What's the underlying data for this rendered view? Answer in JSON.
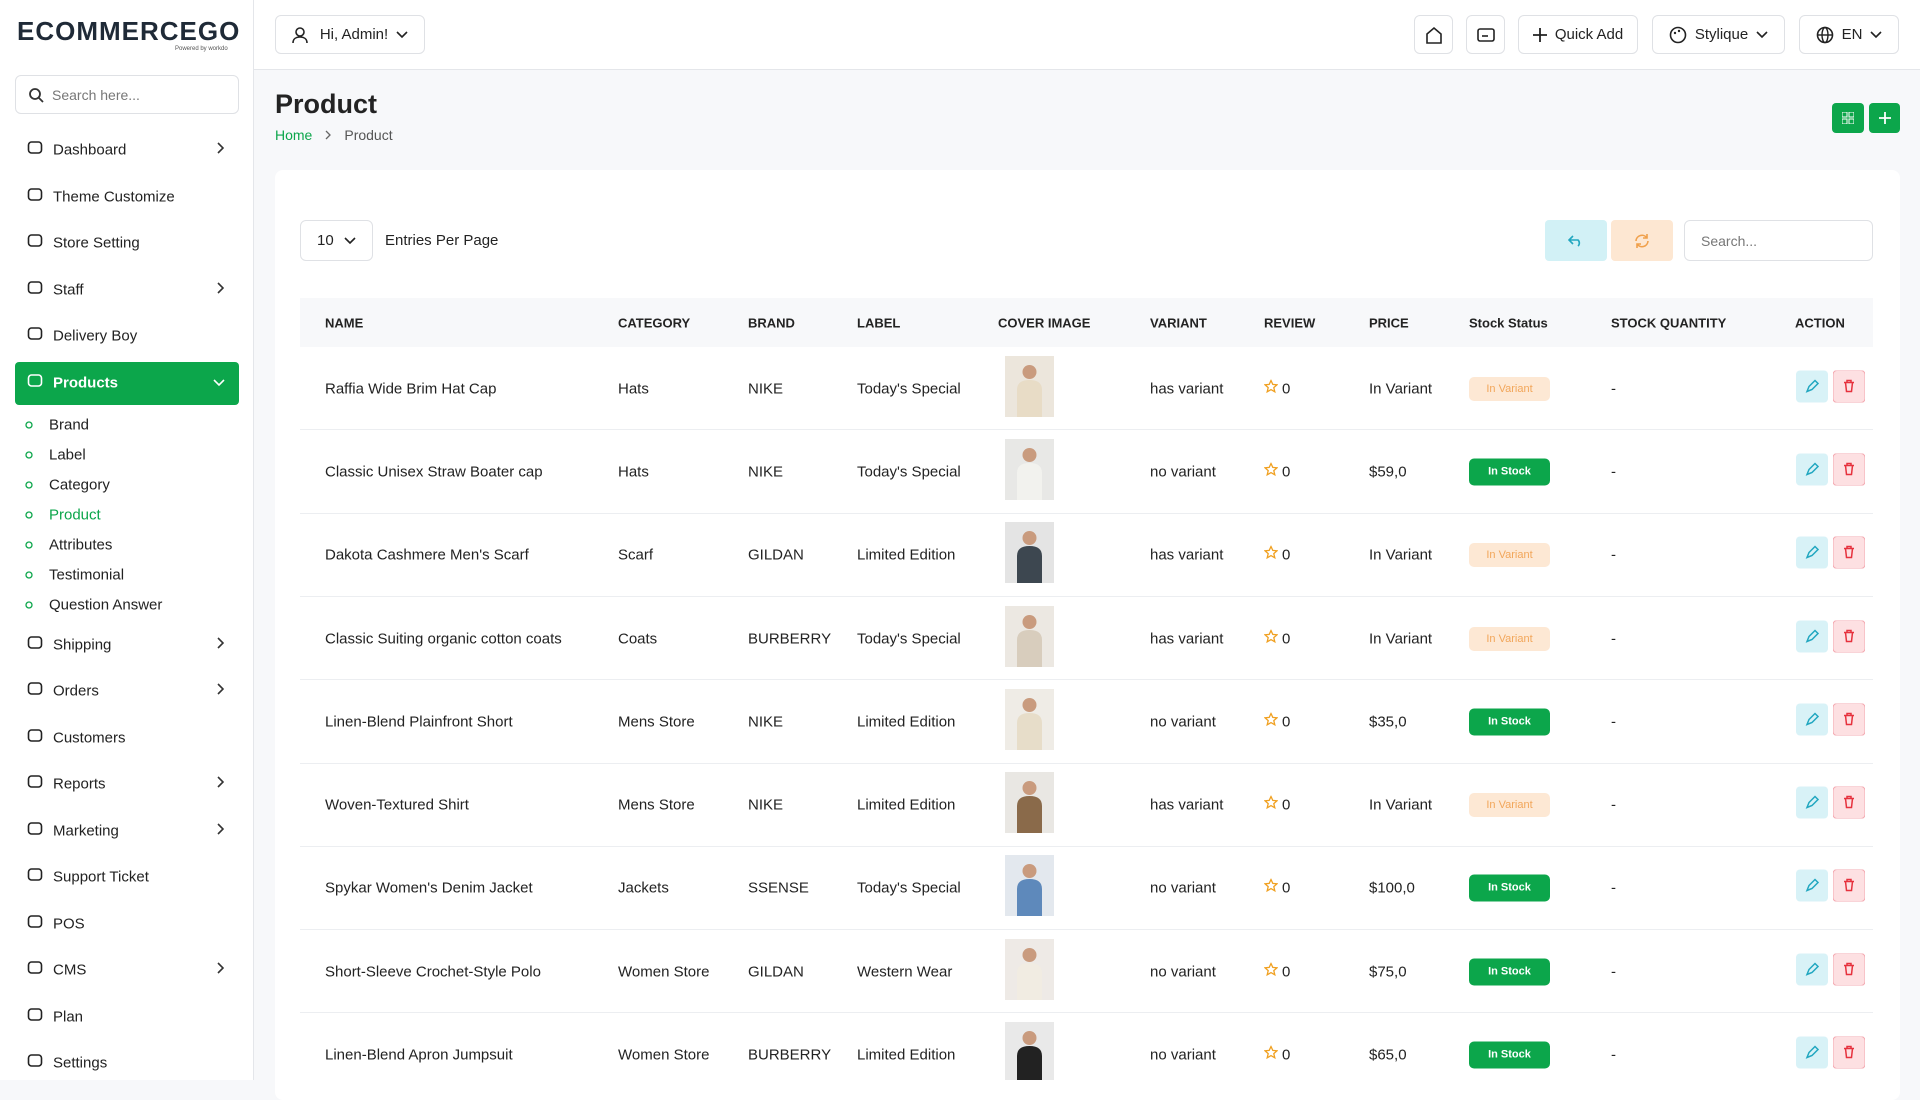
{
  "sidebar": {
    "logo": "ECOMMERCEGO",
    "logo_sub": "Powered by workdo",
    "search_placeholder": "Search here...",
    "menu": [
      {
        "label": "Dashboard",
        "arrow": true
      },
      {
        "label": "Theme Customize",
        "arrow": false
      },
      {
        "label": "Store Setting",
        "arrow": false
      },
      {
        "label": "Staff",
        "arrow": true
      },
      {
        "label": "Delivery Boy",
        "arrow": false
      },
      {
        "label": "Products",
        "arrow": true,
        "open": true,
        "active_child": 3,
        "children": [
          "Brand",
          "Label",
          "Category",
          "Product",
          "Attributes",
          "Testimonial",
          "Question Answer"
        ]
      },
      {
        "label": "Shipping",
        "arrow": true
      },
      {
        "label": "Orders",
        "arrow": true
      },
      {
        "label": "Customers",
        "arrow": false
      },
      {
        "label": "Reports",
        "arrow": true
      },
      {
        "label": "Marketing",
        "arrow": true
      },
      {
        "label": "Support Ticket",
        "arrow": false
      },
      {
        "label": "POS",
        "arrow": false
      },
      {
        "label": "CMS",
        "arrow": true
      },
      {
        "label": "Plan",
        "arrow": false
      },
      {
        "label": "Settings",
        "arrow": false
      }
    ]
  },
  "header": {
    "greeting": "Hi, Admin!",
    "quick_add": "Quick Add",
    "theme": "Stylique",
    "language": "EN"
  },
  "page": {
    "title": "Product",
    "breadcrumb": [
      "Home",
      "Product"
    ]
  },
  "table": {
    "entries": "10",
    "entries_label": "Entries Per Page",
    "search_placeholder": "Search...",
    "columns": [
      "NAME",
      "CATEGORY",
      "BRAND",
      "LABEL",
      "COVER IMAGE",
      "VARIANT",
      "REVIEW",
      "PRICE",
      "Stock Status",
      "STOCK QUANTITY",
      "ACTION"
    ],
    "rows": [
      {
        "name": "Raffia Wide Brim Hat Cap",
        "category": "Hats",
        "brand": "NIKE",
        "label": "Today's Special",
        "variant": "has variant",
        "review": 0,
        "price": "In Variant",
        "status": "In Variant",
        "in_stock": false,
        "stock_quantity": "-"
      },
      {
        "name": "Classic Unisex Straw Boater cap",
        "category": "Hats",
        "brand": "NIKE",
        "label": "Today's Special",
        "variant": "no variant",
        "review": 0,
        "price": "$59,0",
        "status": "In Stock",
        "in_stock": true,
        "stock_quantity": "-"
      },
      {
        "name": "Dakota Cashmere Men's Scarf",
        "category": "Scarf",
        "brand": "GILDAN",
        "label": "Limited Edition",
        "variant": "has variant",
        "review": 0,
        "price": "In Variant",
        "status": "In Variant",
        "in_stock": false,
        "stock_quantity": "-"
      },
      {
        "name": "Classic Suiting organic cotton coats",
        "category": "Coats",
        "brand": "BURBERRY",
        "label": "Today's Special",
        "variant": "has variant",
        "review": 0,
        "price": "In Variant",
        "status": "In Variant",
        "in_stock": false,
        "stock_quantity": "-"
      },
      {
        "name": "Linen-Blend Plainfront Short",
        "category": "Mens Store",
        "brand": "NIKE",
        "label": "Limited Edition",
        "variant": "no variant",
        "review": 0,
        "price": "$35,0",
        "status": "In Stock",
        "in_stock": true,
        "stock_quantity": "-"
      },
      {
        "name": "Woven-Textured Shirt",
        "category": "Mens Store",
        "brand": "NIKE",
        "label": "Limited Edition",
        "variant": "has variant",
        "review": 0,
        "price": "In Variant",
        "status": "In Variant",
        "in_stock": false,
        "stock_quantity": "-"
      },
      {
        "name": "Spykar Women's Denim Jacket",
        "category": "Jackets",
        "brand": "SSENSE",
        "label": "Today's Special",
        "variant": "no variant",
        "review": 0,
        "price": "$100,0",
        "status": "In Stock",
        "in_stock": true,
        "stock_quantity": "-"
      },
      {
        "name": "Short-Sleeve Crochet-Style Polo",
        "category": "Women Store",
        "brand": "GILDAN",
        "label": "Western Wear",
        "variant": "no variant",
        "review": 0,
        "price": "$75,0",
        "status": "In Stock",
        "in_stock": true,
        "stock_quantity": "-"
      },
      {
        "name": "Linen-Blend Apron Jumpsuit",
        "category": "Women Store",
        "brand": "BURBERRY",
        "label": "Limited Edition",
        "variant": "no variant",
        "review": 0,
        "price": "$65,0",
        "status": "In Stock",
        "in_stock": true,
        "stock_quantity": "-"
      }
    ]
  }
}
